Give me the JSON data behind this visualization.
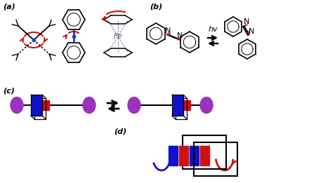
{
  "bg_color": "#ffffff",
  "label_a": "(a)",
  "label_b": "(b)",
  "label_c": "(c)",
  "label_d": "(d)",
  "blue_color": "#1111cc",
  "red_color": "#cc1111",
  "purple_color": "#9933bb",
  "arrow_red": "#cc1111",
  "arrow_blue": "#1111cc",
  "hv_text": "hv",
  "fe_text": "Fe",
  "n_text": "N"
}
